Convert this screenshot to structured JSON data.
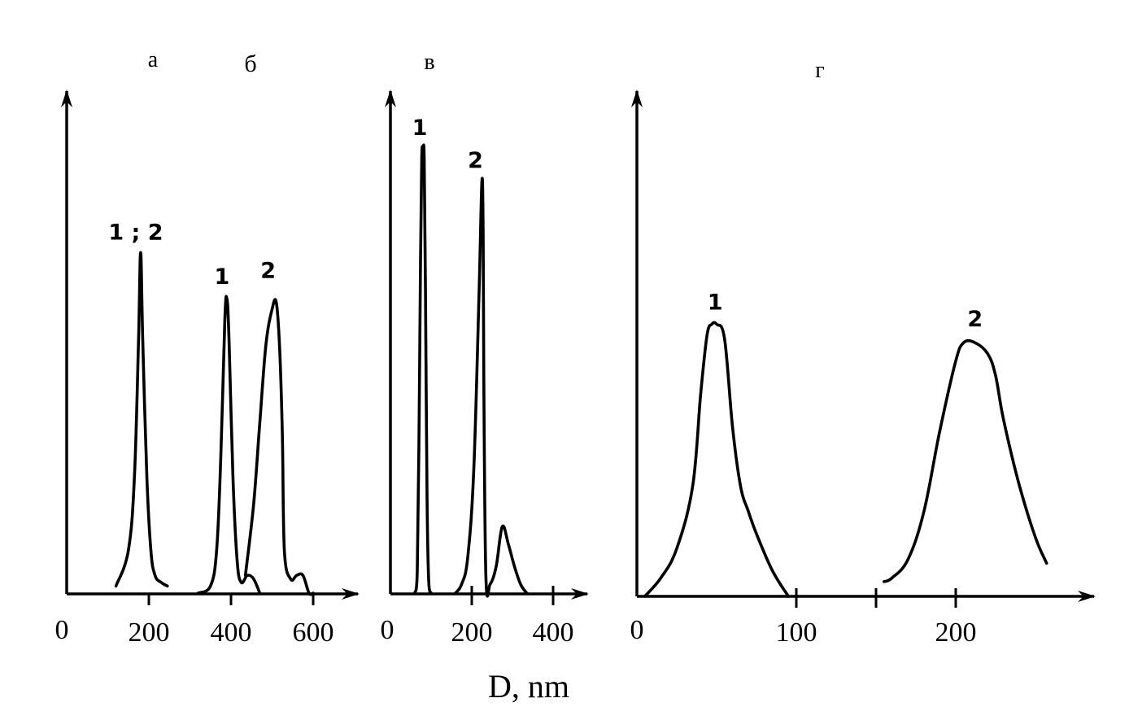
{
  "figure": {
    "xlabel": "D, nm",
    "origin_label": "0"
  },
  "chart_data": [
    {
      "type": "line",
      "panel_labels": [
        "а",
        "б"
      ],
      "origin_label": "0",
      "tick_labels": [
        "200",
        "400",
        "600"
      ],
      "xlim": [
        0,
        720
      ],
      "ylim": [
        0,
        1
      ],
      "grid": false,
      "series": [
        {
          "label": "1 ; 2",
          "x": [
            120,
            150,
            165,
            175,
            180,
            185,
            195,
            205,
            215,
            230,
            245
          ],
          "y": [
            0.02,
            0.12,
            0.33,
            0.72,
            0.96,
            0.72,
            0.33,
            0.12,
            0.05,
            0.03,
            0.02
          ]
        },
        {
          "label": "1",
          "x": [
            320,
            350,
            365,
            375,
            385,
            390,
            395,
            405,
            415,
            425,
            440,
            455,
            470
          ],
          "y": [
            0.0,
            0.02,
            0.12,
            0.38,
            0.77,
            0.83,
            0.72,
            0.32,
            0.09,
            0.03,
            0.05,
            0.04,
            0.0
          ]
        },
        {
          "label": "2",
          "x": [
            435,
            455,
            470,
            485,
            500,
            510,
            518,
            525,
            530,
            545,
            560,
            575,
            590,
            600
          ],
          "y": [
            0.05,
            0.25,
            0.48,
            0.7,
            0.8,
            0.82,
            0.7,
            0.45,
            0.12,
            0.04,
            0.05,
            0.05,
            0.0,
            0.0
          ]
        }
      ]
    },
    {
      "type": "line",
      "panel_labels": [
        "в"
      ],
      "origin_label": "0",
      "tick_labels": [
        "200",
        "400"
      ],
      "xlim": [
        0,
        470
      ],
      "ylim": [
        0,
        1
      ],
      "grid": false,
      "series": [
        {
          "label": "1",
          "x": [
            60,
            66,
            70,
            74,
            77,
            80,
            83,
            86,
            90,
            94,
            100
          ],
          "y": [
            0.0,
            0.05,
            0.33,
            0.75,
            0.98,
            1.0,
            0.98,
            0.7,
            0.22,
            0.03,
            0.0
          ]
        },
        {
          "label": "2",
          "x": [
            160,
            175,
            190,
            205,
            218,
            225,
            228,
            230,
            235,
            245,
            260,
            275,
            290,
            305,
            320,
            335
          ],
          "y": [
            0.0,
            0.02,
            0.08,
            0.28,
            0.68,
            0.93,
            0.81,
            0.43,
            0.03,
            0.02,
            0.06,
            0.15,
            0.11,
            0.06,
            0.02,
            0.0
          ]
        }
      ]
    },
    {
      "type": "line",
      "panel_labels": [
        "г"
      ],
      "origin_label": "0",
      "tick_labels": [
        "100",
        "200"
      ],
      "xlim": [
        0,
        290
      ],
      "ylim": [
        0,
        1
      ],
      "grid": false,
      "series": [
        {
          "label": "1",
          "x": [
            5,
            15,
            25,
            35,
            40,
            44,
            47,
            50,
            55,
            60,
            65,
            70,
            75,
            85,
            95
          ],
          "y": [
            0.0,
            0.05,
            0.13,
            0.3,
            0.55,
            0.71,
            0.74,
            0.74,
            0.7,
            0.46,
            0.3,
            0.23,
            0.17,
            0.07,
            0.0
          ]
        },
        {
          "label": "2",
          "x": [
            155,
            160,
            170,
            180,
            190,
            200,
            205,
            212,
            220,
            225,
            230,
            240,
            250,
            257
          ],
          "y": [
            0.04,
            0.05,
            0.1,
            0.23,
            0.45,
            0.64,
            0.69,
            0.69,
            0.66,
            0.6,
            0.48,
            0.3,
            0.16,
            0.09
          ]
        }
      ]
    }
  ]
}
